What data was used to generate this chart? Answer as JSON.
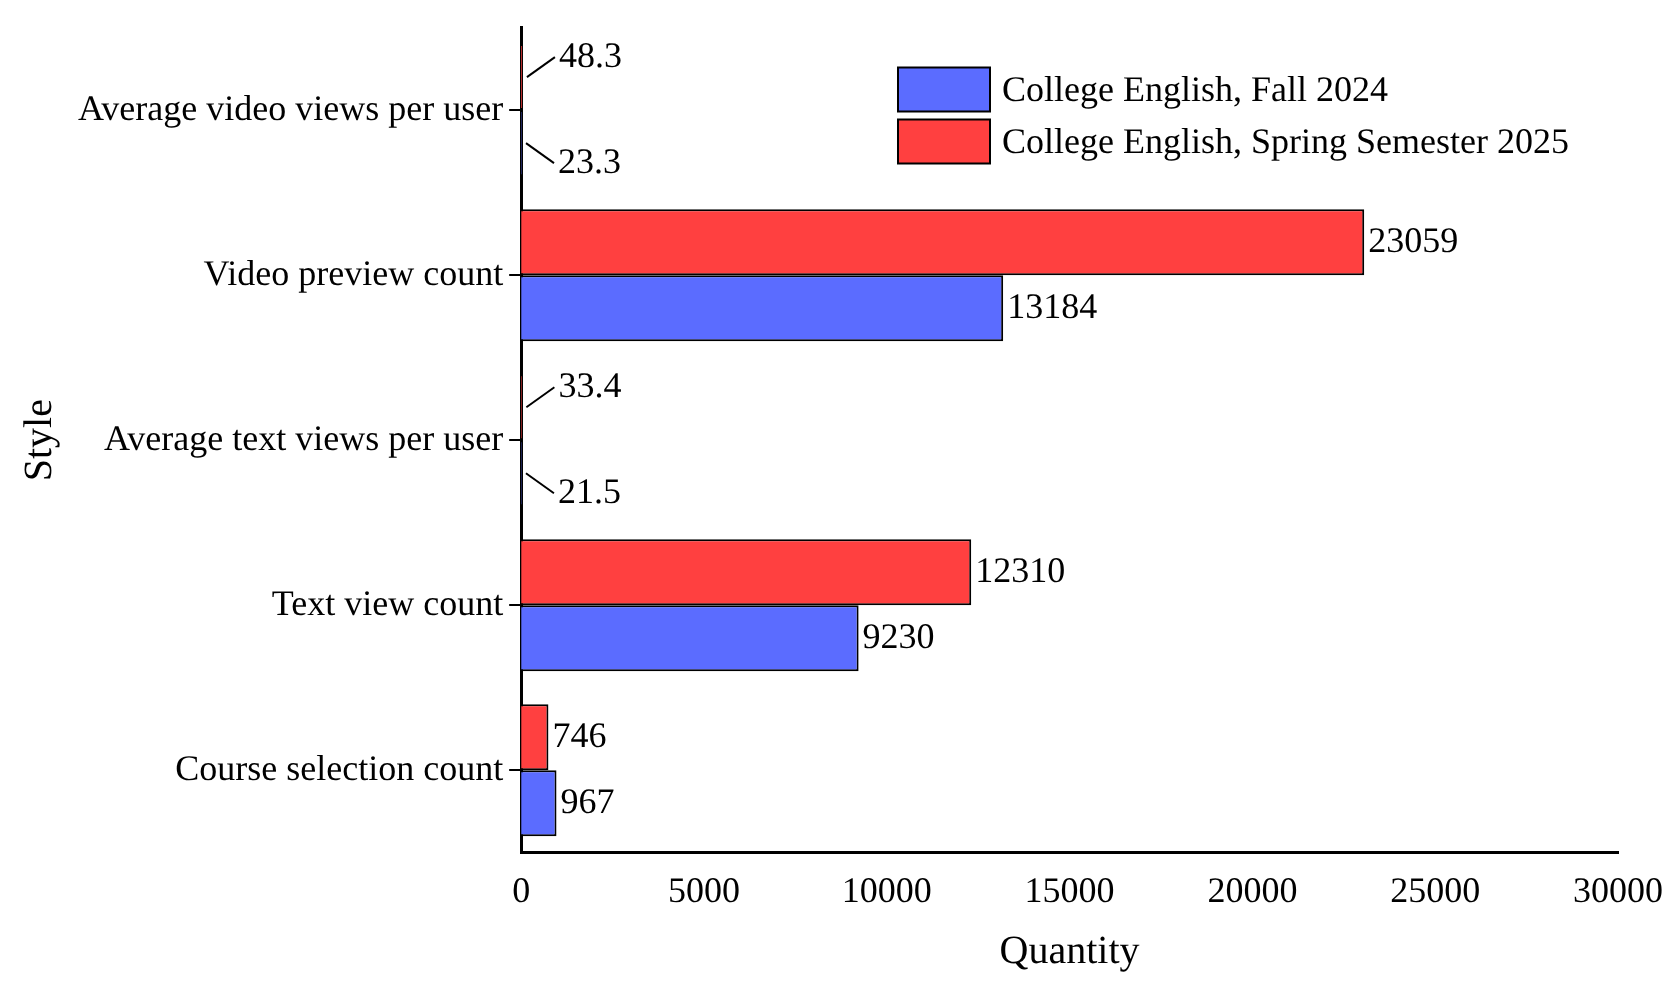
{
  "chart_data": {
    "type": "bar",
    "orientation": "horizontal",
    "xlabel": "Quantity",
    "ylabel": "Style",
    "categories": [
      "Average video views per user",
      "Video preview count",
      "Average text views per user",
      "Text view count",
      "Course selection count"
    ],
    "series": [
      {
        "name": "College English, Fall 2024",
        "color": "#5b6cff",
        "values": [
          23.3,
          13184,
          21.5,
          9230,
          967
        ]
      },
      {
        "name": "College English, Spring Semester 2025",
        "color": "#ff4040",
        "values": [
          48.3,
          23059,
          33.4,
          12310,
          746
        ]
      }
    ],
    "xlim": [
      0,
      30000
    ],
    "xticks": [
      0,
      5000,
      10000,
      15000,
      20000,
      25000,
      30000
    ],
    "grid": false,
    "legend": "top right",
    "data_labels": true
  }
}
